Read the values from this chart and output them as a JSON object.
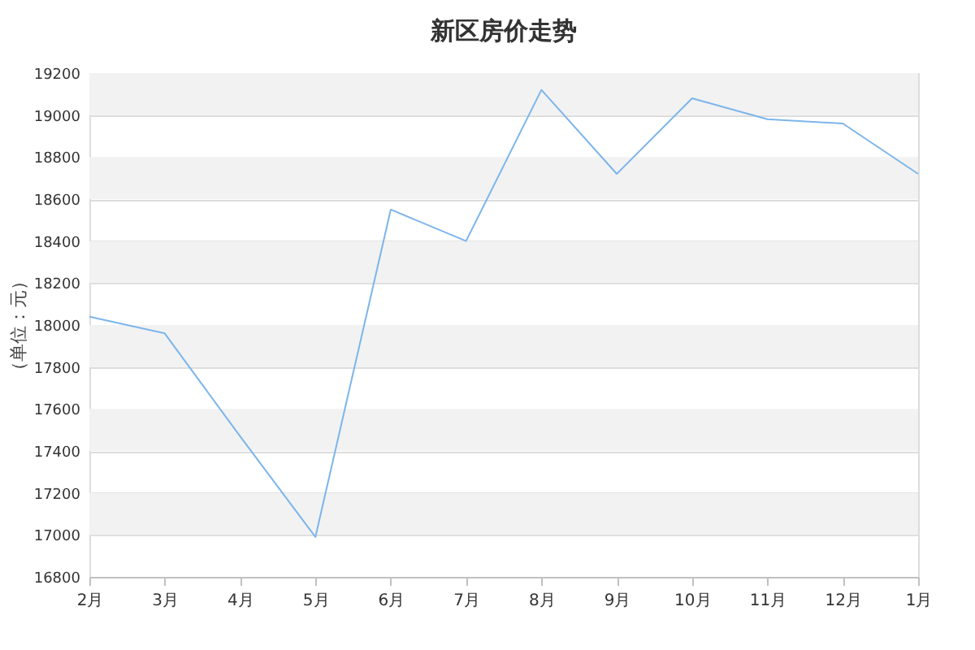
{
  "chart_data": {
    "type": "line",
    "title": "新区房价走势",
    "ylabel": "（单位：元）",
    "categories": [
      "2月",
      "3月",
      "4月",
      "5月",
      "6月",
      "7月",
      "8月",
      "9月",
      "10月",
      "11月",
      "12月",
      "1月"
    ],
    "series": [
      {
        "color": "#7cb5ec",
        "values": [
          18040,
          17960,
          17470,
          16990,
          18550,
          18400,
          19120,
          18720,
          19080,
          18980,
          18960,
          18720
        ]
      }
    ],
    "ylim": [
      16800,
      19200
    ],
    "yticks": [
      16800,
      17000,
      17200,
      17400,
      17600,
      17800,
      18000,
      18200,
      18400,
      18600,
      18800,
      19000,
      19200
    ],
    "grid": "y",
    "legend": false,
    "marker": "none",
    "line_style": "solid"
  }
}
